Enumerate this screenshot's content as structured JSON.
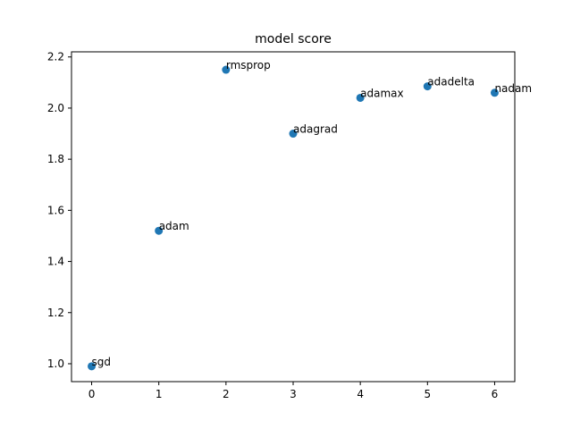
{
  "chart_data": {
    "type": "scatter",
    "title": "model score",
    "xlabel": "",
    "ylabel": "",
    "xlim": [
      -0.3,
      6.3
    ],
    "ylim": [
      0.93,
      2.22
    ],
    "xticks": [
      0,
      1,
      2,
      3,
      4,
      5,
      6
    ],
    "xtick_labels": [
      "0",
      "1",
      "2",
      "3",
      "4",
      "5",
      "6"
    ],
    "yticks": [
      1.0,
      1.2,
      1.4,
      1.6,
      1.8,
      2.0,
      2.2
    ],
    "ytick_labels": [
      "1.0",
      "1.2",
      "1.4",
      "1.6",
      "1.8",
      "2.0",
      "2.2"
    ],
    "grid": false,
    "point_color": "#1f77b4",
    "points": [
      {
        "x": 0,
        "y": 0.99,
        "label": "sgd"
      },
      {
        "x": 1,
        "y": 1.52,
        "label": "adam"
      },
      {
        "x": 2,
        "y": 2.15,
        "label": "rmsprop"
      },
      {
        "x": 3,
        "y": 1.9,
        "label": "adagrad"
      },
      {
        "x": 4,
        "y": 2.04,
        "label": "adamax"
      },
      {
        "x": 5,
        "y": 2.085,
        "label": "adadelta"
      },
      {
        "x": 6,
        "y": 2.06,
        "label": "nadam"
      }
    ]
  }
}
